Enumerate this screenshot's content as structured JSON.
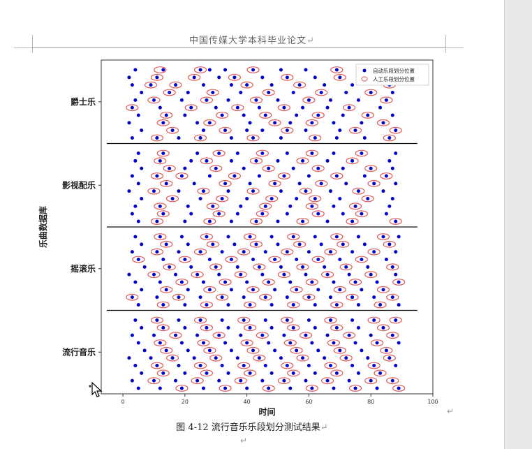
{
  "header": {
    "text": "中国传媒大学本科毕业论文"
  },
  "paragraph_mark": "↵",
  "caption": {
    "text": "图 4-12  流行音乐乐段划分测试结果"
  },
  "chart_data": {
    "type": "scatter",
    "xlabel": "时间",
    "ylabel": "乐曲数据库",
    "xlim": [
      -7,
      100
    ],
    "xticks": [
      0,
      20,
      40,
      60,
      80,
      100
    ],
    "grid": false,
    "legend_position": "top-right",
    "colors": {
      "auto": "#0000cc",
      "manual": "#e05a5a"
    },
    "categories": [
      "爵士乐",
      "影视配乐",
      "摇滚乐",
      "流行音乐"
    ],
    "series": [
      {
        "name": "自动乐段划分位置",
        "marker": "filled-dot"
      },
      {
        "name": "人工乐段划分位置",
        "marker": "hollow-ellipse"
      }
    ],
    "songs_per_genre": 10,
    "genres": [
      {
        "name": "爵士乐",
        "rows": [
          {
            "auto": [
              4,
              13,
              25,
              28,
              33,
              42,
              51,
              59,
              69,
              78,
              88
            ],
            "manual": [
              12,
              25,
              42,
              69,
              88
            ]
          },
          {
            "auto": [
              2,
              11,
              23,
              31,
              36,
              45,
              53,
              62,
              70,
              81,
              89
            ],
            "manual": [
              11,
              23,
              36,
              53,
              70,
              81
            ]
          },
          {
            "auto": [
              3,
              9,
              17,
              26,
              35,
              40,
              48,
              57,
              65,
              74,
              86
            ],
            "manual": [
              9,
              17,
              40,
              57,
              86
            ]
          },
          {
            "auto": [
              6,
              15,
              21,
              29,
              38,
              47,
              55,
              64,
              72,
              80,
              87
            ],
            "manual": [
              15,
              29,
              47,
              64,
              80
            ]
          },
          {
            "auto": [
              4,
              10,
              19,
              27,
              34,
              43,
              50,
              60,
              67,
              76,
              85
            ],
            "manual": [
              10,
              27,
              43,
              60,
              85
            ]
          },
          {
            "auto": [
              3,
              12,
              22,
              30,
              37,
              44,
              52,
              58,
              66,
              73,
              83
            ],
            "manual": [
              3,
              22,
              37,
              52,
              73
            ]
          },
          {
            "auto": [
              5,
              14,
              20,
              32,
              39,
              46,
              56,
              63,
              71,
              79,
              87
            ],
            "manual": [
              14,
              32,
              46,
              63,
              79
            ]
          },
          {
            "auto": [
              2,
              13,
              24,
              28,
              41,
              49,
              54,
              61,
              68,
              77,
              84
            ],
            "manual": [
              13,
              28,
              49,
              61,
              84
            ]
          },
          {
            "auto": [
              6,
              16,
              26,
              33,
              40,
              45,
              53,
              59,
              70,
              75,
              88
            ],
            "manual": [
              16,
              33,
              53,
              75,
              88
            ]
          },
          {
            "auto": [
              3,
              11,
              18,
              25,
              35,
              42,
              51,
              62,
              69,
              78,
              86
            ],
            "manual": [
              11,
              25,
              42,
              62,
              86
            ]
          }
        ]
      },
      {
        "name": "影视配乐",
        "rows": [
          {
            "auto": [
              5,
              13,
              24,
              31,
              37,
              45,
              53,
              61,
              68,
              77,
              88
            ],
            "manual": [
              13,
              31,
              45,
              61,
              77
            ]
          },
          {
            "auto": [
              4,
              12,
              22,
              27,
              35,
              43,
              50,
              58,
              66,
              74,
              86
            ],
            "manual": [
              12,
              27,
              43,
              58,
              74
            ]
          },
          {
            "auto": [
              6,
              15,
              20,
              30,
              39,
              47,
              55,
              63,
              71,
              80,
              87
            ],
            "manual": [
              15,
              30,
              47,
              63,
              80
            ]
          },
          {
            "auto": [
              3,
              11,
              19,
              28,
              36,
              44,
              52,
              60,
              69,
              78,
              85
            ],
            "manual": [
              11,
              19,
              36,
              52,
              69,
              85
            ]
          },
          {
            "auto": [
              5,
              14,
              23,
              33,
              41,
              49,
              57,
              64,
              72,
              81,
              88
            ],
            "manual": [
              14,
              33,
              49,
              64,
              81
            ]
          },
          {
            "auto": [
              2,
              10,
              18,
              26,
              34,
              42,
              51,
              59,
              67,
              76,
              84
            ],
            "manual": [
              10,
              26,
              42,
              59,
              76
            ]
          },
          {
            "auto": [
              6,
              16,
              25,
              32,
              40,
              48,
              56,
              62,
              70,
              79,
              87
            ],
            "manual": [
              16,
              32,
              48,
              62,
              79
            ]
          },
          {
            "auto": [
              4,
              12,
              21,
              29,
              38,
              46,
              54,
              61,
              68,
              75,
              86
            ],
            "manual": [
              12,
              29,
              46,
              61,
              75
            ]
          },
          {
            "auto": [
              3,
              13,
              22,
              31,
              37,
              45,
              53,
              63,
              71,
              77,
              85
            ],
            "manual": [
              13,
              31,
              45,
              63,
              77
            ]
          },
          {
            "auto": [
              5,
              11,
              20,
              28,
              35,
              43,
              50,
              58,
              66,
              74,
              88
            ],
            "manual": [
              11,
              28,
              43,
              58,
              74,
              88
            ]
          }
        ]
      },
      {
        "name": "摇滚乐",
        "rows": [
          {
            "auto": [
              4,
              12,
              19,
              27,
              34,
              41,
              48,
              55,
              62,
              69,
              76,
              84,
              89
            ],
            "manual": [
              12,
              27,
              41,
              55,
              69,
              84
            ]
          },
          {
            "auto": [
              6,
              14,
              21,
              29,
              36,
              43,
              50,
              57,
              64,
              71,
              78,
              86
            ],
            "manual": [
              14,
              29,
              43,
              57,
              71,
              86
            ]
          },
          {
            "auto": [
              3,
              11,
              18,
              25,
              32,
              39,
              46,
              53,
              60,
              67,
              74,
              81,
              88
            ],
            "manual": [
              11,
              25,
              39,
              53,
              67,
              81
            ]
          },
          {
            "auto": [
              5,
              13,
              20,
              28,
              35,
              42,
              49,
              56,
              63,
              70,
              77,
              85
            ],
            "manual": [
              5,
              20,
              35,
              49,
              63,
              77
            ]
          },
          {
            "auto": [
              7,
              15,
              22,
              30,
              37,
              44,
              51,
              58,
              65,
              72,
              79,
              87
            ],
            "manual": [
              15,
              30,
              44,
              58,
              72,
              87
            ]
          },
          {
            "auto": [
              2,
              10,
              17,
              24,
              31,
              38,
              45,
              52,
              59,
              66,
              73,
              80,
              88
            ],
            "manual": [
              10,
              24,
              38,
              52,
              66,
              80
            ]
          },
          {
            "auto": [
              4,
              12,
              19,
              26,
              33,
              40,
              47,
              54,
              61,
              68,
              75,
              82,
              89
            ],
            "manual": [
              19,
              33,
              47,
              61,
              75,
              89
            ]
          },
          {
            "auto": [
              6,
              14,
              21,
              28,
              35,
              42,
              49,
              56,
              63,
              70,
              77,
              84
            ],
            "manual": [
              14,
              28,
              42,
              56,
              70,
              84
            ]
          },
          {
            "auto": [
              3,
              11,
              18,
              25,
              32,
              39,
              46,
              53,
              60,
              67,
              74,
              81,
              87
            ],
            "manual": [
              3,
              18,
              32,
              46,
              60,
              74,
              87
            ]
          },
          {
            "auto": [
              5,
              13,
              20,
              27,
              34,
              41,
              48,
              55,
              62,
              69,
              76,
              83,
              89
            ],
            "manual": [
              13,
              27,
              41,
              55,
              69,
              83
            ]
          }
        ]
      },
      {
        "name": "流行音乐",
        "rows": [
          {
            "auto": [
              4,
              11,
              18,
              25,
              32,
              39,
              46,
              53,
              60,
              67,
              74,
              81,
              88
            ],
            "manual": [
              11,
              25,
              39,
              53,
              67,
              81,
              88
            ]
          },
          {
            "auto": [
              6,
              13,
              20,
              27,
              34,
              41,
              48,
              55,
              62,
              69,
              76,
              84
            ],
            "manual": [
              13,
              27,
              41,
              55,
              69,
              84
            ]
          },
          {
            "auto": [
              3,
              10,
              17,
              24,
              31,
              38,
              45,
              52,
              59,
              66,
              73,
              80,
              87
            ],
            "manual": [
              17,
              31,
              45,
              59,
              73,
              87
            ]
          },
          {
            "auto": [
              5,
              12,
              19,
              26,
              33,
              40,
              47,
              54,
              61,
              68,
              75,
              82,
              89
            ],
            "manual": [
              12,
              26,
              40,
              54,
              68,
              82
            ]
          },
          {
            "auto": [
              7,
              14,
              21,
              28,
              35,
              42,
              49,
              56,
              63,
              70,
              77,
              85
            ],
            "manual": [
              14,
              28,
              42,
              56,
              70,
              85
            ]
          },
          {
            "auto": [
              2,
              9,
              16,
              23,
              30,
              37,
              44,
              51,
              58,
              65,
              72,
              79,
              86
            ],
            "manual": [
              16,
              30,
              44,
              58,
              72,
              86
            ]
          },
          {
            "auto": [
              4,
              11,
              18,
              25,
              32,
              39,
              46,
              53,
              60,
              67,
              74,
              81,
              88
            ],
            "manual": [
              11,
              25,
              39,
              53,
              67,
              81
            ]
          },
          {
            "auto": [
              6,
              13,
              20,
              27,
              34,
              41,
              48,
              55,
              62,
              69,
              76,
              83
            ],
            "manual": [
              13,
              27,
              41,
              55,
              69,
              83
            ]
          },
          {
            "auto": [
              3,
              10,
              17,
              24,
              31,
              38,
              45,
              52,
              59,
              66,
              73,
              80,
              87
            ],
            "manual": [
              10,
              24,
              38,
              52,
              66,
              80,
              87
            ]
          },
          {
            "auto": [
              5,
              12,
              19,
              26,
              33,
              40,
              47,
              54,
              61,
              68,
              75,
              82,
              89
            ],
            "manual": [
              19,
              33,
              47,
              61,
              75,
              89
            ]
          }
        ]
      }
    ]
  }
}
